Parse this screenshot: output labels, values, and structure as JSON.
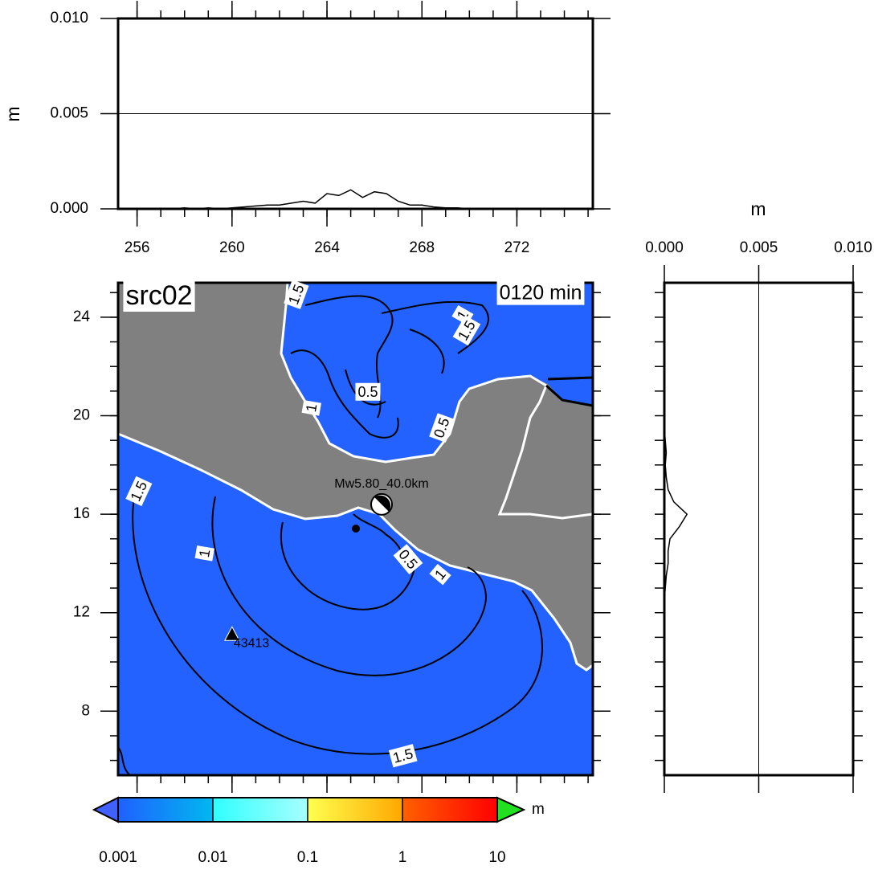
{
  "top_profile": {
    "ylabel": "m",
    "color": "#000000",
    "grid": true,
    "xlim": [
      255.2,
      275.2
    ],
    "ylim": [
      0,
      0.01
    ],
    "xticks": [
      256,
      260,
      264,
      268,
      272
    ],
    "xminor": [
      256,
      257,
      258,
      259,
      260,
      261,
      262,
      263,
      264,
      265,
      266,
      267,
      268,
      269,
      270,
      271,
      272,
      273,
      274,
      275
    ],
    "yticks": [
      {
        "value": 0,
        "label": "0.000"
      },
      0.005,
      {
        "value": 0.01,
        "label": "0.010"
      }
    ],
    "x": [
      256,
      256.5,
      257,
      257.5,
      258,
      258.5,
      259,
      259.5,
      260,
      260.5,
      261,
      261.5,
      262,
      262.5,
      263,
      263.5,
      264,
      264.5,
      265,
      265.5,
      266,
      266.5,
      267,
      267.5,
      268,
      268.5,
      269,
      269.5,
      270,
      270.5,
      271,
      271.5,
      272,
      272.5,
      273,
      273.5,
      274
    ],
    "values": [
      0,
      0,
      0,
      0,
      5e-05,
      0,
      5e-05,
      0,
      5e-05,
      0.0001,
      0.00015,
      0.0002,
      0.0002,
      0.0003,
      0.0004,
      0.0003,
      0.0008,
      0.0007,
      0.001,
      0.0006,
      0.0009,
      0.0008,
      0.0004,
      0.0002,
      0.0002,
      0.0001,
      5e-05,
      5e-05,
      0,
      0,
      0,
      0,
      0,
      0,
      0,
      0,
      0
    ]
  },
  "side_profile": {
    "xlabel": "m",
    "color": "#000000",
    "grid": true,
    "xlim": [
      0,
      0.01
    ],
    "ylim": [
      5.4,
      25.4
    ],
    "xticks": [
      {
        "value": 0,
        "label": "0.000"
      },
      0.005,
      {
        "value": 0.01,
        "label": "0.010"
      }
    ],
    "yminor": [
      6,
      7,
      8,
      9,
      10,
      11,
      12,
      13,
      14,
      15,
      16,
      17,
      18,
      19,
      20,
      21,
      22,
      23,
      24,
      25
    ],
    "lat": [
      25,
      24.5,
      24,
      23.5,
      23,
      22.5,
      22,
      21.5,
      21,
      20.5,
      20,
      19.5,
      19,
      18.5,
      18,
      17.5,
      17,
      16.5,
      16,
      15.5,
      15,
      14.5,
      14,
      13.5,
      13,
      12.5,
      12,
      11.5,
      11,
      10.5,
      10,
      9.5,
      9,
      8.5,
      8,
      7.5,
      7,
      6.5,
      6
    ],
    "values": [
      0,
      0,
      0,
      0,
      0,
      0,
      0,
      0,
      0,
      0,
      0,
      0,
      5e-05,
      0.0001,
      5e-05,
      0.0001,
      0.0002,
      0.0005,
      0.0012,
      0.0008,
      0.0003,
      0.0002,
      0.0002,
      0.0001,
      5e-05,
      0,
      0,
      0,
      0,
      0,
      0,
      0,
      0,
      0,
      0,
      0,
      0,
      0,
      0
    ]
  },
  "map": {
    "title": "src02",
    "time": "0120 min",
    "xlim": [
      255.2,
      275.2
    ],
    "ylim": [
      5.4,
      25.4
    ],
    "yticks": [
      8,
      12,
      16,
      20,
      24
    ],
    "source": {
      "label": "Mw5.80_40.0km",
      "lon": 266.3,
      "lat": 16.4
    },
    "station": {
      "label": "43413",
      "lon": 260,
      "lat": 11.1
    },
    "contour_labels": [
      "1.5",
      "1",
      "1.5",
      "1",
      "0.5",
      "0.5",
      "1.5",
      "1",
      "0.5",
      "1",
      "1.5"
    ]
  },
  "colorbar": {
    "unit": "m",
    "ticks": [
      0.001,
      0.01,
      0.1,
      1,
      10
    ],
    "colors": [
      [
        "#2060ff",
        "#00b8f0"
      ],
      [
        "#30ffff",
        "#a8ffff"
      ],
      [
        "#ffff50",
        "#ffa800"
      ],
      [
        "#ff6000",
        "#ff0000"
      ]
    ]
  }
}
